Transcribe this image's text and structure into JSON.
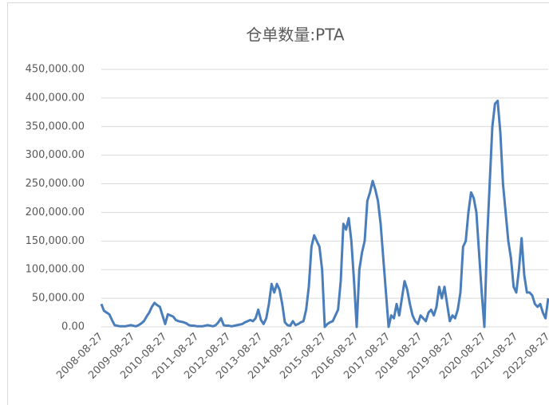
{
  "chart_data": {
    "type": "line",
    "title": "仓单数量:PTA",
    "x": [
      "2008-08-27",
      "2008-09-27",
      "2008-10-27",
      "2008-11-27",
      "2008-12-27",
      "2009-01-27",
      "2009-02-27",
      "2009-03-27",
      "2009-04-27",
      "2009-05-27",
      "2009-06-27",
      "2009-07-27",
      "2009-08-27",
      "2009-09-27",
      "2009-10-27",
      "2009-11-27",
      "2009-12-27",
      "2010-01-27",
      "2010-02-27",
      "2010-03-27",
      "2010-04-27",
      "2010-05-27",
      "2010-06-27",
      "2010-07-27",
      "2010-08-27",
      "2010-09-27",
      "2010-10-27",
      "2010-11-27",
      "2010-12-27",
      "2011-01-27",
      "2011-02-27",
      "2011-03-27",
      "2011-04-27",
      "2011-05-27",
      "2011-06-27",
      "2011-07-27",
      "2011-08-27",
      "2011-09-27",
      "2011-10-27",
      "2011-11-27",
      "2011-12-27",
      "2012-01-27",
      "2012-02-27",
      "2012-03-27",
      "2012-04-27",
      "2012-05-27",
      "2012-06-27",
      "2012-07-27",
      "2012-08-27",
      "2012-09-27",
      "2012-10-27",
      "2012-11-27",
      "2012-12-27",
      "2013-01-27",
      "2013-02-27",
      "2013-03-27",
      "2013-04-27",
      "2013-05-27",
      "2013-06-27",
      "2013-07-27",
      "2013-08-27",
      "2013-09-27",
      "2013-10-27",
      "2013-11-27",
      "2013-12-27",
      "2014-01-27",
      "2014-02-27",
      "2014-03-27",
      "2014-04-27",
      "2014-05-27",
      "2014-06-27",
      "2014-07-27",
      "2014-08-27",
      "2014-09-27",
      "2014-10-27",
      "2014-11-27",
      "2014-12-27",
      "2015-01-27",
      "2015-02-27",
      "2015-03-27",
      "2015-04-27",
      "2015-05-27",
      "2015-06-27",
      "2015-07-27",
      "2015-08-27",
      "2015-09-27",
      "2015-10-27",
      "2015-11-27",
      "2015-12-27",
      "2016-01-27",
      "2016-02-27",
      "2016-03-27",
      "2016-04-27",
      "2016-05-27",
      "2016-06-27",
      "2016-07-27",
      "2016-08-27",
      "2016-09-27",
      "2016-10-27",
      "2016-11-27",
      "2016-12-27",
      "2017-01-27",
      "2017-02-27",
      "2017-03-27",
      "2017-04-27",
      "2017-05-27",
      "2017-06-27",
      "2017-07-27",
      "2017-08-27",
      "2017-09-27",
      "2017-10-27",
      "2017-11-27",
      "2017-12-27",
      "2018-01-27",
      "2018-02-27",
      "2018-03-27",
      "2018-04-27",
      "2018-05-27",
      "2018-06-27",
      "2018-07-27",
      "2018-08-27",
      "2018-09-27",
      "2018-10-27",
      "2018-11-27",
      "2018-12-27",
      "2019-01-27",
      "2019-02-27",
      "2019-03-27",
      "2019-04-27",
      "2019-05-27",
      "2019-06-27",
      "2019-07-27",
      "2019-08-27",
      "2019-09-27",
      "2019-10-27",
      "2019-11-27",
      "2019-12-27",
      "2020-01-27",
      "2020-02-27",
      "2020-03-27",
      "2020-04-27",
      "2020-05-27",
      "2020-06-27",
      "2020-07-27",
      "2020-08-27",
      "2020-09-27",
      "2020-10-27",
      "2020-11-27",
      "2020-12-27",
      "2021-01-27",
      "2021-02-27",
      "2021-03-27",
      "2021-04-27",
      "2021-05-27",
      "2021-06-27",
      "2021-07-27",
      "2021-08-27",
      "2021-09-27",
      "2021-10-27",
      "2021-11-27",
      "2021-12-27",
      "2022-01-27",
      "2022-02-27",
      "2022-03-27",
      "2022-04-27",
      "2022-05-27",
      "2022-06-27",
      "2022-07-27",
      "2022-08-27"
    ],
    "series": [
      {
        "name": "仓单数量:PTA",
        "color": "#4a7ebb",
        "values": [
          40000,
          28000,
          25000,
          22000,
          12000,
          3000,
          2000,
          1000,
          1000,
          1000,
          2000,
          3000,
          2000,
          1000,
          3000,
          6000,
          10000,
          18000,
          25000,
          35000,
          42000,
          38000,
          35000,
          20000,
          5000,
          22000,
          20000,
          18000,
          12000,
          10000,
          9000,
          8000,
          6000,
          3000,
          2000,
          2000,
          1000,
          1000,
          1000,
          2000,
          3000,
          2000,
          1000,
          3000,
          8000,
          15000,
          3000,
          2000,
          2000,
          1000,
          2000,
          3000,
          4000,
          5000,
          8000,
          10000,
          12000,
          10000,
          15000,
          30000,
          12000,
          5000,
          15000,
          40000,
          75000,
          60000,
          75000,
          65000,
          40000,
          8000,
          3000,
          2000,
          10000,
          3000,
          5000,
          8000,
          10000,
          30000,
          70000,
          140000,
          160000,
          150000,
          140000,
          100000,
          0,
          5000,
          8000,
          10000,
          20000,
          30000,
          80000,
          180000,
          170000,
          190000,
          150000,
          80000,
          0,
          100000,
          130000,
          150000,
          220000,
          235000,
          255000,
          240000,
          220000,
          180000,
          120000,
          60000,
          0,
          20000,
          15000,
          40000,
          20000,
          50000,
          80000,
          65000,
          40000,
          20000,
          10000,
          5000,
          20000,
          15000,
          10000,
          25000,
          30000,
          20000,
          35000,
          70000,
          50000,
          70000,
          40000,
          10000,
          20000,
          15000,
          30000,
          60000,
          140000,
          150000,
          200000,
          235000,
          225000,
          200000,
          130000,
          60000,
          0,
          150000,
          250000,
          350000,
          390000,
          395000,
          340000,
          250000,
          200000,
          150000,
          120000,
          70000,
          60000,
          100000,
          155000,
          90000,
          60000,
          60000,
          55000,
          40000,
          35000,
          40000,
          25000,
          15000,
          50000
        ]
      }
    ],
    "xticks": [
      "2008-08-27",
      "2009-08-27",
      "2010-08-27",
      "2011-08-27",
      "2012-08-27",
      "2013-08-27",
      "2014-08-27",
      "2015-08-27",
      "2016-08-27",
      "2017-08-27",
      "2018-08-27",
      "2019-08-27",
      "2020-08-27",
      "2021-08-27",
      "2022-08-27"
    ],
    "ylim": [
      0,
      450000
    ],
    "yticks": [
      {
        "value": 0,
        "label": "0.00"
      },
      {
        "value": 50000,
        "label": "50,000.00"
      },
      {
        "value": 100000,
        "label": "100,000.00"
      },
      {
        "value": 150000,
        "label": "150,000.00"
      },
      {
        "value": 200000,
        "label": "200,000.00"
      },
      {
        "value": 250000,
        "label": "250,000.00"
      },
      {
        "value": 300000,
        "label": "300,000.00"
      },
      {
        "value": 350000,
        "label": "350,000.00"
      },
      {
        "value": 400000,
        "label": "400,000.00"
      },
      {
        "value": 450000,
        "label": "450,000.00"
      }
    ],
    "grid": true
  }
}
